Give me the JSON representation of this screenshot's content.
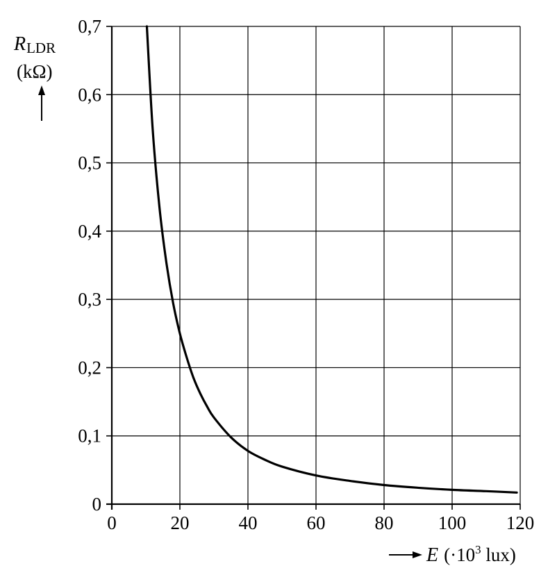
{
  "chart_data": {
    "type": "line",
    "x_axis": {
      "variable": "E",
      "unit_prefix": "(·10",
      "unit_exponent": "3",
      "unit_suffix": " lux)",
      "ticks": [
        "0",
        "20",
        "40",
        "60",
        "80",
        "100",
        "120"
      ],
      "range": [
        0,
        120
      ]
    },
    "y_axis": {
      "variable": "R",
      "subscript": "LDR",
      "unit": "(kΩ)",
      "ticks": [
        "0",
        "0,1",
        "0,2",
        "0,3",
        "0,4",
        "0,5",
        "0,6",
        "0,7"
      ],
      "range": [
        0,
        0.7
      ]
    },
    "grid": true,
    "series": [
      {
        "x": [
          10.3,
          12,
          14,
          16,
          18,
          20,
          22,
          24,
          26,
          28,
          30,
          35,
          40,
          45,
          50,
          60,
          70,
          80,
          90,
          100,
          110,
          119
        ],
        "y": [
          0.7,
          0.55,
          0.435,
          0.355,
          0.295,
          0.25,
          0.215,
          0.185,
          0.162,
          0.143,
          0.127,
          0.098,
          0.078,
          0.065,
          0.055,
          0.042,
          0.034,
          0.028,
          0.024,
          0.021,
          0.019,
          0.017
        ]
      }
    ]
  }
}
